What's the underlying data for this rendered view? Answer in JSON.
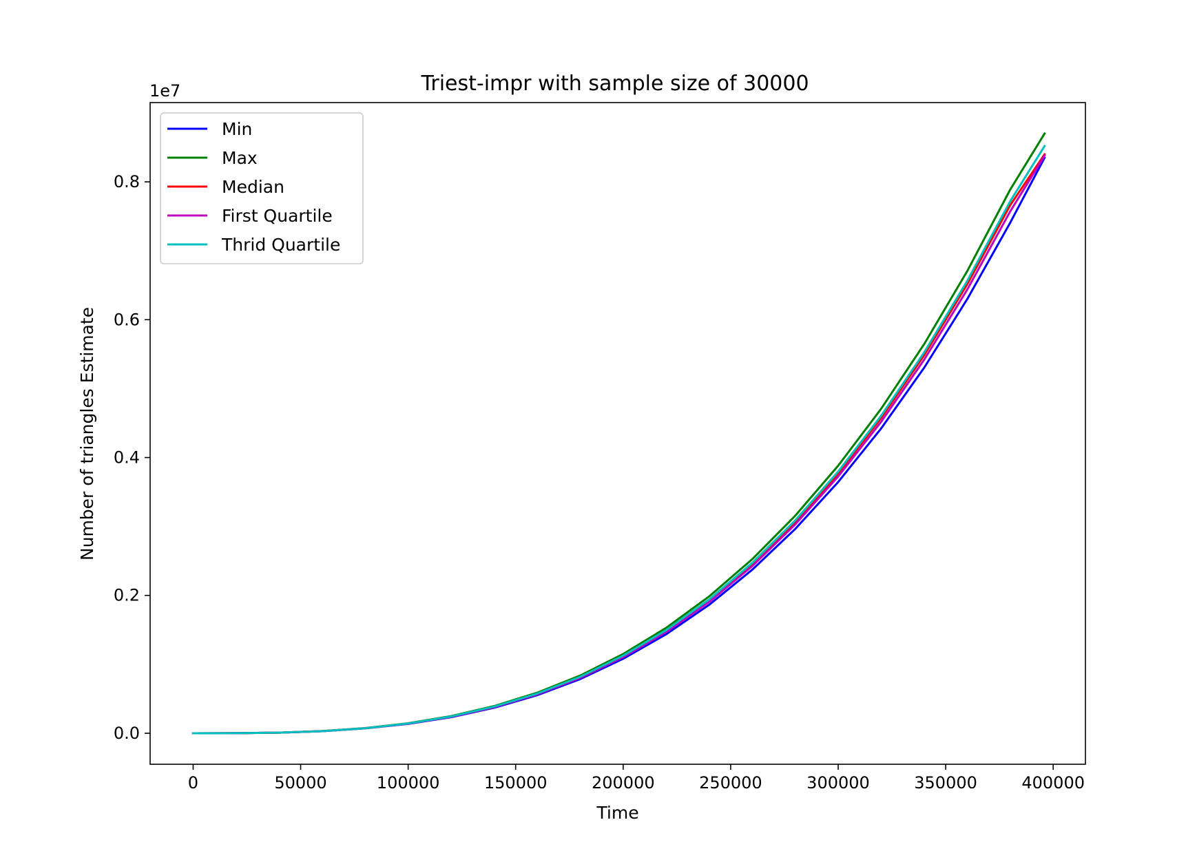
{
  "chart_data": {
    "type": "line",
    "title": "Triest-impr with sample size of 30000",
    "xlabel": "Time",
    "ylabel": "Number of triangles Estimate",
    "y_offset_label": "1e7",
    "xlim": [
      -20000,
      415000
    ],
    "ylim": [
      -0.045,
      0.915
    ],
    "y_scale_factor": 10000000,
    "xticks": [
      0,
      50000,
      100000,
      150000,
      200000,
      250000,
      300000,
      350000,
      400000
    ],
    "xtick_labels": [
      "0",
      "50000",
      "100000",
      "150000",
      "200000",
      "250000",
      "300000",
      "350000",
      "400000"
    ],
    "yticks": [
      0.0,
      0.2,
      0.4,
      0.6,
      0.8
    ],
    "ytick_labels": [
      "0.0",
      "0.2",
      "0.4",
      "0.6",
      "0.8"
    ],
    "grid": false,
    "legend_position": "upper-left",
    "x": [
      0,
      20000,
      40000,
      60000,
      80000,
      100000,
      120000,
      140000,
      160000,
      180000,
      200000,
      220000,
      240000,
      260000,
      280000,
      300000,
      320000,
      340000,
      360000,
      380000,
      396000
    ],
    "series": [
      {
        "name": "Min",
        "color": "#0000ff",
        "values": [
          0,
          0.0001,
          0.0009,
          0.003,
          0.007,
          0.0135,
          0.0233,
          0.037,
          0.0552,
          0.0786,
          0.108,
          0.1436,
          0.1864,
          0.2371,
          0.2963,
          0.3645,
          0.4422,
          0.5304,
          0.6297,
          0.7406,
          0.835
        ]
      },
      {
        "name": "Max",
        "color": "#008000",
        "values": [
          0,
          0.0001,
          0.0009,
          0.0031,
          0.0074,
          0.0144,
          0.0248,
          0.0394,
          0.0588,
          0.0837,
          0.1149,
          0.1529,
          0.1985,
          0.2524,
          0.3155,
          0.3881,
          0.4708,
          0.5647,
          0.6704,
          0.7886,
          0.87
        ]
      },
      {
        "name": "Median",
        "color": "#ff0000",
        "values": [
          0,
          0.0001,
          0.0009,
          0.003,
          0.0072,
          0.014,
          0.0241,
          0.0383,
          0.0571,
          0.0813,
          0.1116,
          0.1485,
          0.1928,
          0.2452,
          0.3064,
          0.3769,
          0.4573,
          0.5485,
          0.6512,
          0.766,
          0.84
        ]
      },
      {
        "name": "First Quartile",
        "color": "#bf00bf",
        "values": [
          0,
          0.0001,
          0.0009,
          0.003,
          0.0071,
          0.0138,
          0.0238,
          0.0378,
          0.0564,
          0.0803,
          0.1103,
          0.1468,
          0.1905,
          0.2423,
          0.3028,
          0.3725,
          0.4519,
          0.542,
          0.6435,
          0.757,
          0.838
        ]
      },
      {
        "name": "Thrid Quartile",
        "color": "#00bfbf",
        "values": [
          0,
          0.0001,
          0.0009,
          0.003,
          0.0072,
          0.0141,
          0.0243,
          0.0386,
          0.0575,
          0.0819,
          0.1125,
          0.1496,
          0.1942,
          0.247,
          0.3087,
          0.3797,
          0.4607,
          0.5526,
          0.6562,
          0.7717,
          0.852
        ]
      }
    ]
  }
}
